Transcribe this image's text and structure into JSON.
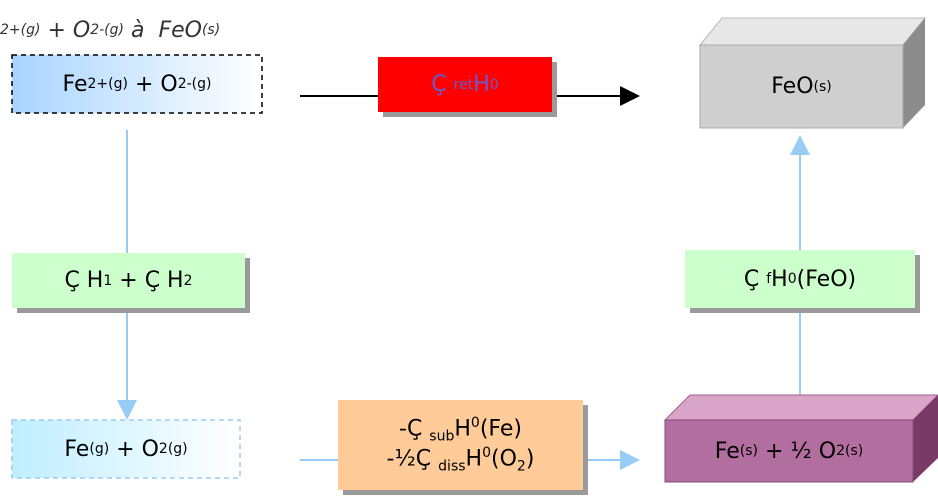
{
  "title": [
    "2+",
    "(g)",
    " + O",
    "2-",
    "(g)",
    " à  FeO",
    "(s)"
  ],
  "nodes": [
    {
      "label": [
        "Fe",
        "2+",
        "(g)",
        " + O",
        "2-",
        "(g)"
      ]
    },
    {
      "label": [
        "FeO",
        "(s)"
      ]
    },
    {
      "label": [
        "Fe",
        "(g)",
        " + O",
        "2(g)"
      ]
    },
    {
      "label": [
        "Fe",
        "(s)",
        " + ½ O",
        "2(s)"
      ]
    }
  ],
  "steps": [
    {
      "label": [
        "Ç ",
        "ret",
        "H",
        "0"
      ]
    },
    {
      "label": [
        "Ç H",
        "1",
        " + Ç H",
        "2"
      ]
    },
    {
      "label": [
        "Ç ",
        "f",
        "H",
        "0",
        "(FeO)"
      ]
    },
    {
      "label": [
        "-Ç ",
        "sub",
        "H",
        "0",
        "(Fe)"
      ],
      "label2": [
        "-½Ç ",
        "diss",
        "H",
        "0",
        "(O",
        "2",
        ")"
      ]
    }
  ]
}
